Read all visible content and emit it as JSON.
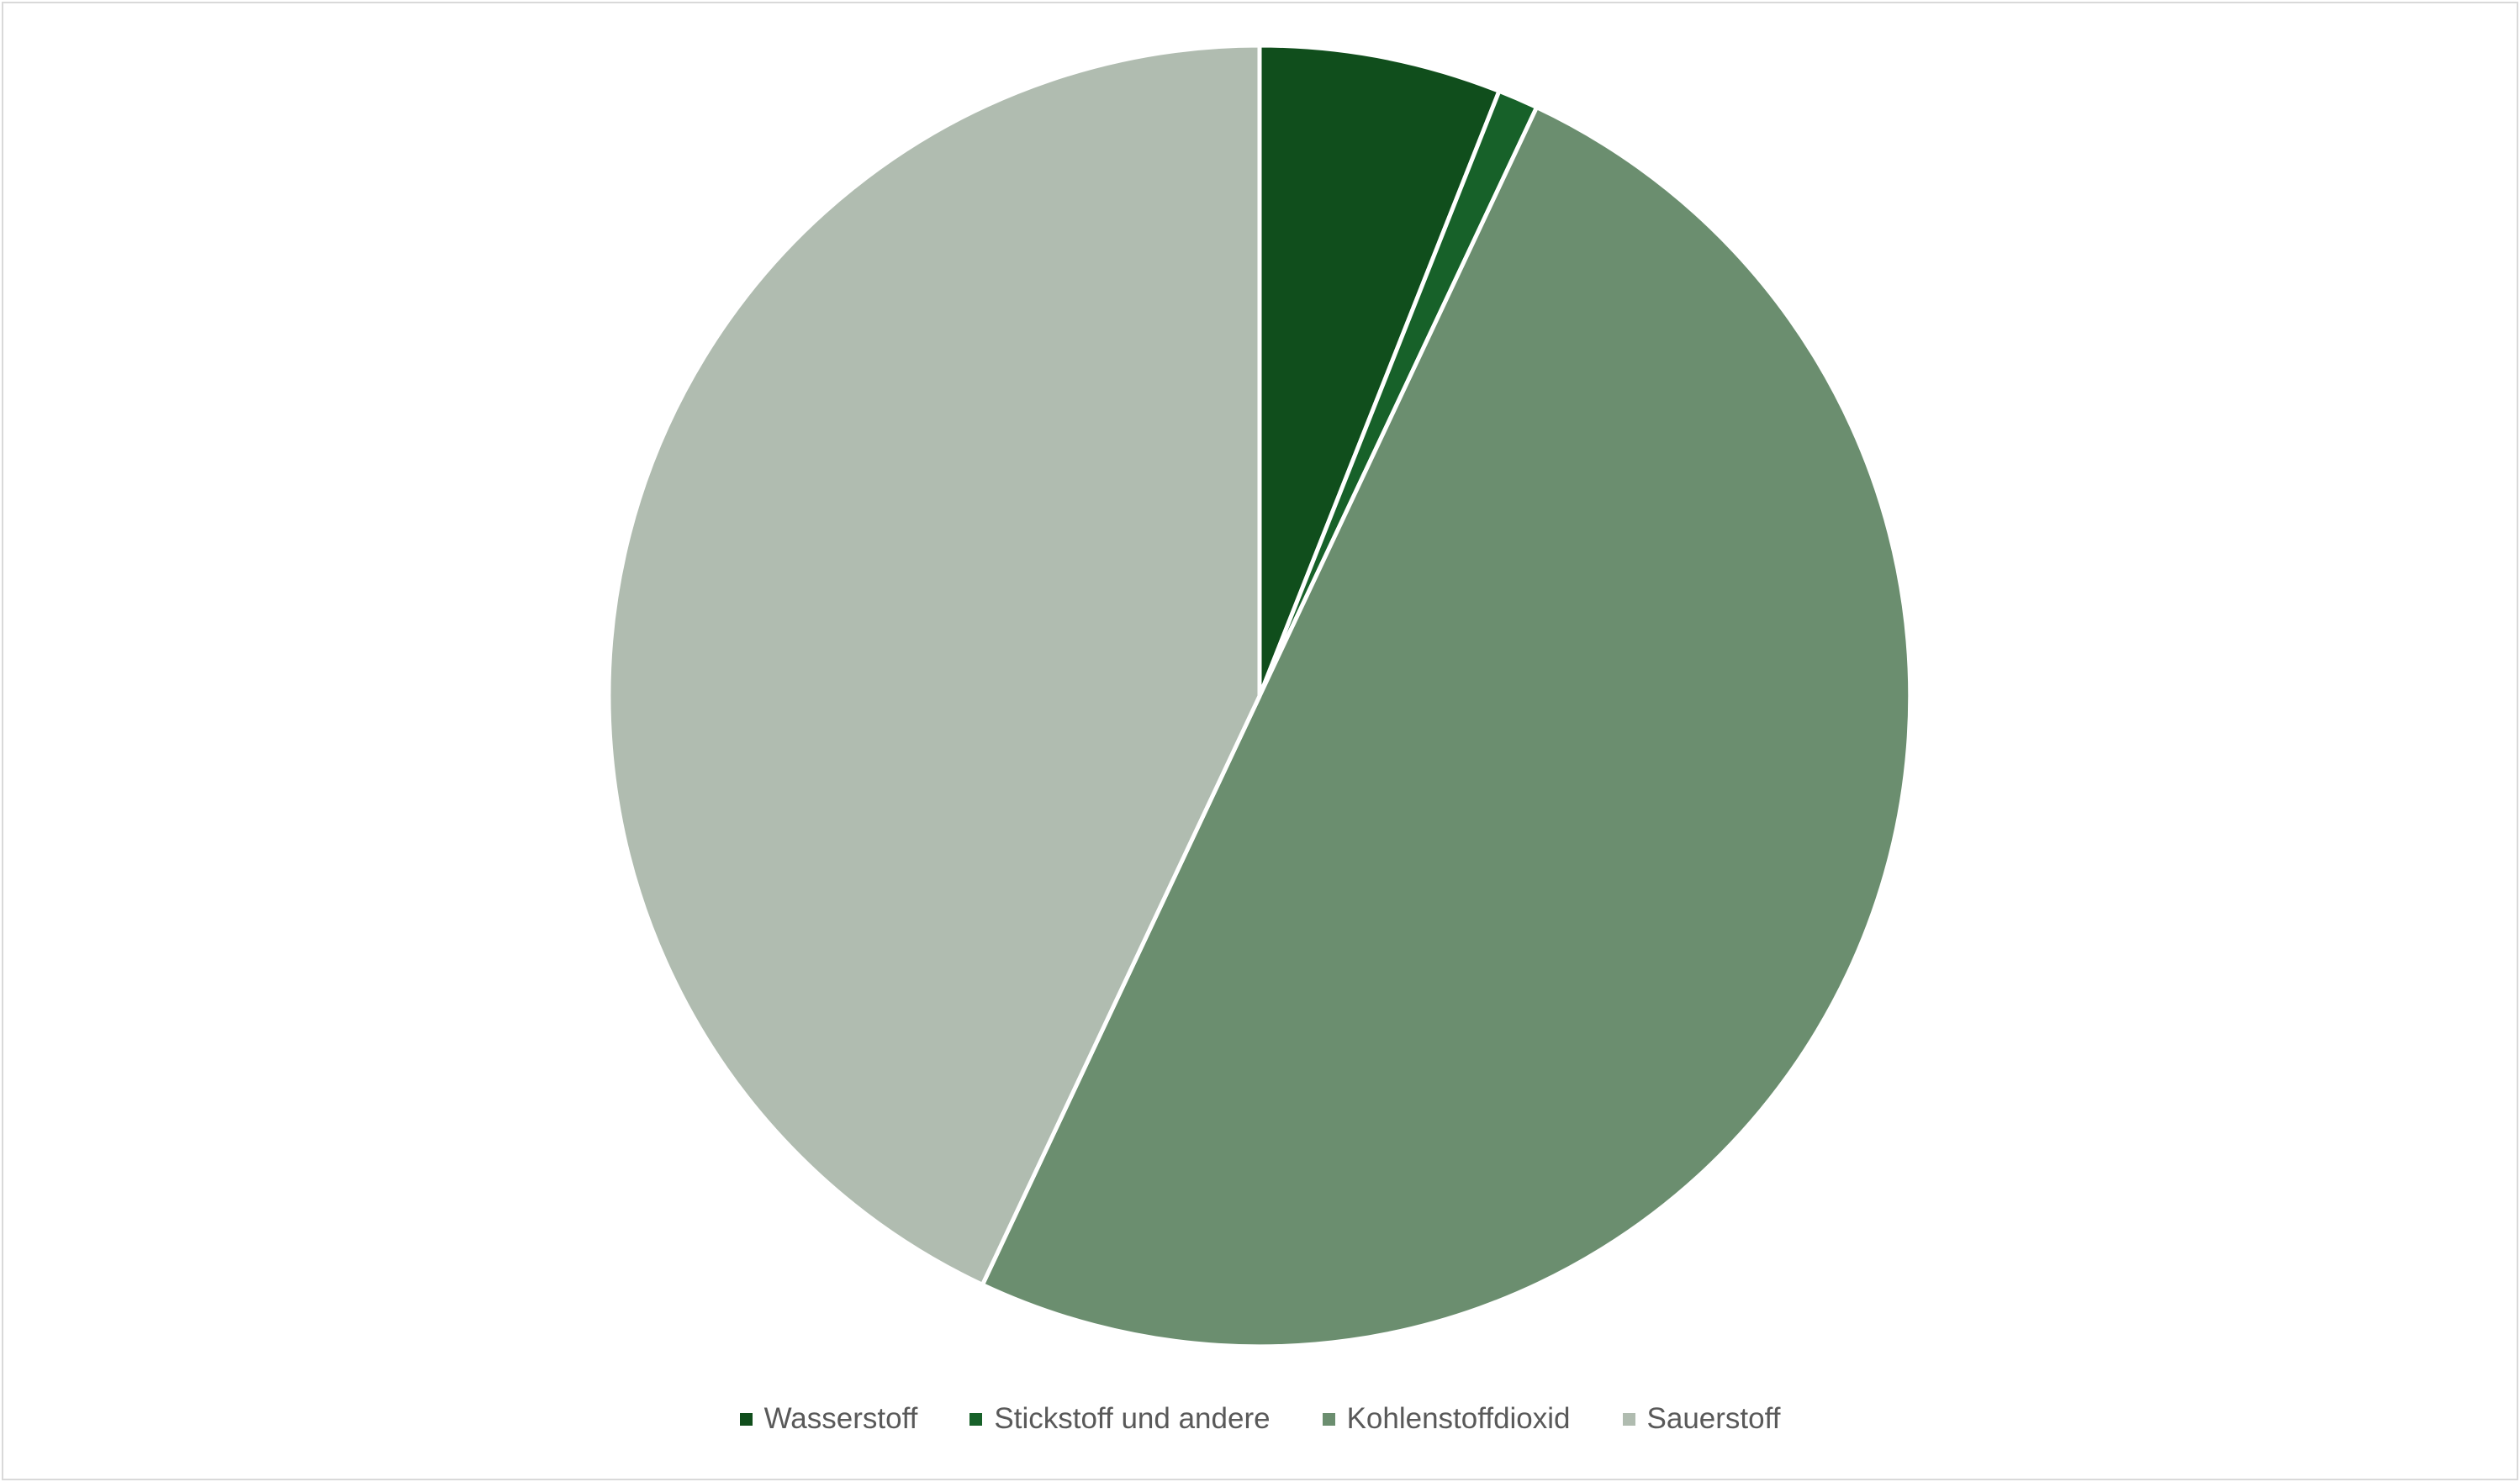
{
  "chart_data": {
    "type": "pie",
    "categories": [
      "Wasserstoff",
      "Stickstoff und andere",
      "Kohlenstoffdioxid",
      "Sauerstoff"
    ],
    "values": [
      6,
      1,
      50,
      43
    ],
    "colors": [
      "#104e1c",
      "#176129",
      "#6b8e6f",
      "#b0bcb0"
    ],
    "start_angle": "12 o'clock, clockwise",
    "legend_position": "bottom"
  }
}
